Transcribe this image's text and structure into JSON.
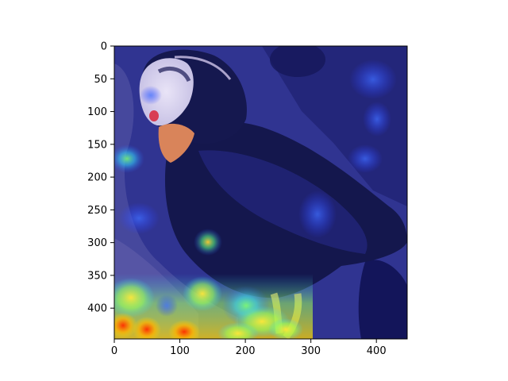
{
  "figure": {
    "type": "image-with-heatmap-overlay",
    "subject": "tufted puffin",
    "x_axis": {
      "range": [
        0,
        447
      ],
      "ticks": [
        0,
        100,
        200,
        300,
        400
      ],
      "tick_labels": [
        "0",
        "100",
        "200",
        "300",
        "400"
      ]
    },
    "y_axis": {
      "range": [
        0,
        447
      ],
      "ticks": [
        0,
        50,
        100,
        150,
        200,
        250,
        300,
        350,
        400
      ],
      "tick_labels": [
        "0",
        "50",
        "100",
        "150",
        "200",
        "250",
        "300",
        "350",
        "400"
      ]
    },
    "colors": {
      "frame": "#000000",
      "overlay_base": "#1c1f8a",
      "hot": "#ff2a00",
      "warm": "#ffd400",
      "mid": "#33d4ff"
    }
  }
}
